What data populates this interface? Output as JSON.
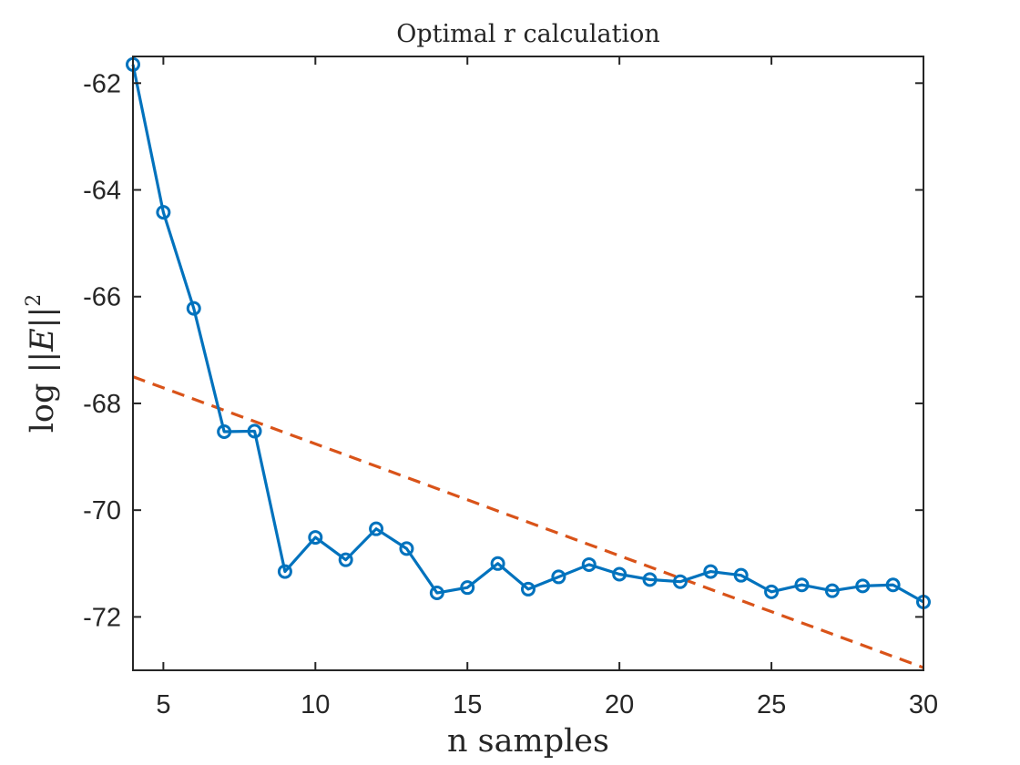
{
  "chart_data": {
    "type": "line",
    "title": "Optimal r calculation",
    "xlabel": "n samples",
    "ylabel": "log ||E||²",
    "ylabel_parts": {
      "prefix": "log ",
      "norm_open": "||",
      "variable": "E",
      "norm_close": "||",
      "exponent": "2"
    },
    "xlim": [
      4,
      30
    ],
    "ylim": [
      -73,
      -61.5
    ],
    "xticks": [
      5,
      10,
      15,
      20,
      25,
      30
    ],
    "yticks": [
      -72,
      -70,
      -68,
      -66,
      -64,
      -62
    ],
    "grid": false,
    "series": [
      {
        "style": "solid-circle-markers",
        "color": "#0072BD",
        "x": [
          4,
          5,
          6,
          7,
          8,
          9,
          10,
          11,
          12,
          13,
          14,
          15,
          16,
          17,
          18,
          19,
          20,
          21,
          22,
          23,
          24,
          25,
          26,
          27,
          28,
          29,
          30
        ],
        "values": [
          -61.65,
          -64.42,
          -66.22,
          -68.53,
          -68.52,
          -71.15,
          -70.51,
          -70.93,
          -70.35,
          -70.72,
          -71.55,
          -71.45,
          -71.0,
          -71.48,
          -71.25,
          -71.02,
          -71.2,
          -71.3,
          -71.34,
          -71.15,
          -71.22,
          -71.53,
          -71.4,
          -71.51,
          -71.42,
          -71.4,
          -71.72
        ]
      },
      {
        "style": "dashed",
        "color": "#D95319",
        "x": [
          4,
          30
        ],
        "values": [
          -67.5,
          -72.95
        ]
      }
    ]
  }
}
